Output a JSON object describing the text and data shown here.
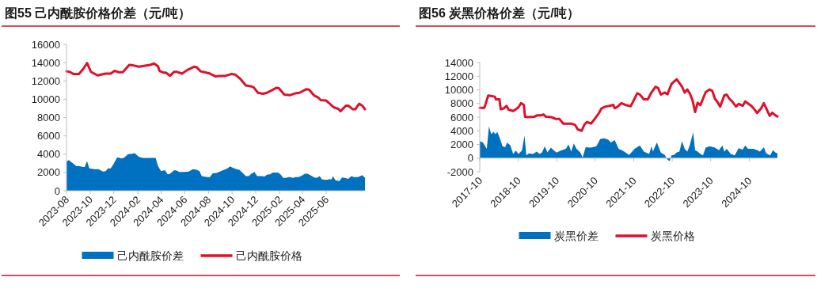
{
  "chart_data": [
    {
      "type": "line",
      "title": "图55  己内酰胺价格价差（元/吨）",
      "xlim": [
        "2023-08-01",
        "2025-09-09"
      ],
      "xticks": [
        "2023-08",
        "2023-10",
        "2023-12",
        "2024-02",
        "2024-04",
        "2024-06",
        "2024-08",
        "2024-10",
        "2024-12",
        "2025-02",
        "2025-04",
        "2025-06"
      ],
      "ylim": [
        0,
        16000
      ],
      "yticks": [
        0,
        2000,
        4000,
        6000,
        8000,
        10000,
        12000,
        14000,
        16000
      ],
      "legend": "bottom",
      "series": [
        {
          "name": "己内酰胺价差",
          "type": "area",
          "color": "#0070c0",
          "x": [
            "2023-08-01",
            "2023-08-07",
            "2023-08-16",
            "2023-08-26",
            "2023-09-02",
            "2023-09-13",
            "2023-09-17",
            "2023-09-23",
            "2023-09-29",
            "2023-10-13",
            "2023-10-23",
            "2023-11-03",
            "2023-11-10",
            "2023-11-16",
            "2023-11-23",
            "2023-11-30",
            "2023-12-10",
            "2023-12-20",
            "2023-12-27",
            "2024-01-07",
            "2024-01-17",
            "2024-01-24",
            "2024-02-04",
            "2024-02-14",
            "2024-02-27",
            "2024-03-11",
            "2024-03-18",
            "2024-03-24",
            "2024-04-01",
            "2024-04-11",
            "2024-04-18",
            "2024-04-24",
            "2024-05-05",
            "2024-05-11",
            "2024-05-18",
            "2024-06-01",
            "2024-06-11",
            "2024-06-22",
            "2024-07-02",
            "2024-07-09",
            "2024-07-15",
            "2024-07-29",
            "2024-08-05",
            "2024-08-12",
            "2024-08-22",
            "2024-09-06",
            "2024-09-19",
            "2024-09-26",
            "2024-10-03",
            "2024-10-13",
            "2024-10-20",
            "2024-11-06",
            "2024-11-13",
            "2024-11-20",
            "2024-11-28",
            "2024-12-05",
            "2024-12-17",
            "2024-12-24",
            "2024-12-30",
            "2025-01-07",
            "2025-01-14",
            "2025-01-28",
            "2025-02-04",
            "2025-02-10",
            "2025-02-17",
            "2025-02-24",
            "2025-02-28",
            "2025-03-07",
            "2025-03-14",
            "2025-03-21",
            "2025-03-28",
            "2025-04-07",
            "2025-04-14",
            "2025-04-21",
            "2025-05-01",
            "2025-05-08",
            "2025-05-15",
            "2025-05-21",
            "2025-06-01",
            "2025-06-08",
            "2025-06-15",
            "2025-06-18",
            "2025-06-25",
            "2025-07-05",
            "2025-07-12",
            "2025-07-19",
            "2025-07-28",
            "2025-08-05",
            "2025-08-12",
            "2025-08-22",
            "2025-09-02",
            "2025-09-07",
            "2025-09-09"
          ],
          "values": [
            3200,
            3350,
            3050,
            2700,
            2700,
            2600,
            2600,
            3250,
            2450,
            2350,
            2350,
            2100,
            2150,
            2450,
            2450,
            2900,
            3650,
            3550,
            3600,
            4000,
            4050,
            4100,
            3700,
            3600,
            3600,
            3600,
            3600,
            2700,
            2150,
            2250,
            1800,
            1850,
            2250,
            2200,
            2050,
            2050,
            2100,
            2350,
            2300,
            2150,
            1600,
            1500,
            1500,
            1900,
            1950,
            2200,
            2450,
            2650,
            2500,
            2350,
            2300,
            1600,
            1600,
            1850,
            2050,
            1600,
            1600,
            1550,
            1750,
            1800,
            2000,
            2000,
            1750,
            1400,
            1400,
            1500,
            1500,
            1400,
            1500,
            1500,
            1600,
            1850,
            1850,
            1700,
            1450,
            1400,
            1600,
            1250,
            1200,
            1250,
            1250,
            1600,
            1150,
            1050,
            1450,
            1400,
            1300,
            1600,
            1500,
            1500,
            1700,
            1500,
            1450
          ]
        },
        {
          "name": "己内酰胺价格",
          "color": "#e0102a",
          "x": [
            "2023-08-01",
            "2023-08-09",
            "2023-08-19",
            "2023-09-02",
            "2023-09-13",
            "2023-09-23",
            "2023-10-03",
            "2023-10-20",
            "2023-11-10",
            "2023-11-23",
            "2023-12-03",
            "2023-12-14",
            "2023-12-24",
            "2024-01-10",
            "2024-01-20",
            "2024-02-04",
            "2024-02-17",
            "2024-03-04",
            "2024-03-14",
            "2024-03-24",
            "2024-03-28",
            "2024-04-08",
            "2024-04-14",
            "2024-04-24",
            "2024-05-05",
            "2024-05-11",
            "2024-05-25",
            "2024-06-08",
            "2024-06-25",
            "2024-07-02",
            "2024-07-12",
            "2024-08-02",
            "2024-08-19",
            "2024-08-29",
            "2024-09-13",
            "2024-09-29",
            "2024-10-09",
            "2024-10-23",
            "2024-11-06",
            "2024-11-20",
            "2024-11-26",
            "2024-12-07",
            "2024-12-20",
            "2024-12-30",
            "2025-01-24",
            "2025-01-30",
            "2025-02-13",
            "2025-02-28",
            "2025-03-14",
            "2025-03-24",
            "2025-04-11",
            "2025-04-18",
            "2025-05-01",
            "2025-05-11",
            "2025-05-18",
            "2025-06-01",
            "2025-06-08",
            "2025-06-21",
            "2025-07-02",
            "2025-07-08",
            "2025-07-22",
            "2025-07-28",
            "2025-08-09",
            "2025-08-15",
            "2025-08-25",
            "2025-09-02",
            "2025-09-09"
          ],
          "values": [
            13050,
            13000,
            12750,
            12750,
            13300,
            13950,
            13000,
            12600,
            12800,
            12800,
            13100,
            12950,
            12950,
            13750,
            13700,
            13550,
            13650,
            13750,
            13900,
            13600,
            13100,
            12900,
            12900,
            12550,
            13000,
            13000,
            12800,
            13200,
            13550,
            13500,
            13050,
            12850,
            12500,
            12550,
            12550,
            12750,
            12700,
            12200,
            11500,
            11400,
            11300,
            10700,
            10600,
            10700,
            11250,
            11200,
            10500,
            10450,
            10650,
            10700,
            11100,
            11050,
            10400,
            10200,
            9900,
            9850,
            9600,
            9100,
            8950,
            8700,
            9300,
            9300,
            8900,
            8900,
            9500,
            9300,
            8900
          ]
        }
      ]
    },
    {
      "type": "line",
      "title": "图56  炭黑价格价差（元/吨）",
      "xlim": [
        "2017-10-01",
        "2025-06-25"
      ],
      "xticks": [
        "2017-10",
        "2018-10",
        "2019-10",
        "2020-10",
        "2021-10",
        "2022-10",
        "2023-10",
        "2024-10"
      ],
      "ylim": [
        -2000,
        14000
      ],
      "yticks": [
        -2000,
        0,
        2000,
        4000,
        6000,
        8000,
        10000,
        12000,
        14000
      ],
      "legend": "bottom",
      "series": [
        {
          "name": "炭黑价差",
          "type": "area",
          "color": "#0070c0",
          "x": [
            "2017-10-01",
            "2017-10-31",
            "2017-12-07",
            "2017-12-27",
            "2018-01-19",
            "2018-02-08",
            "2018-02-28",
            "2018-03-16",
            "2018-04-10",
            "2018-05-05",
            "2018-05-30",
            "2018-06-17",
            "2018-07-19",
            "2018-08-14",
            "2018-09-09",
            "2018-10-03",
            "2018-11-05",
            "2018-11-30",
            "2018-12-17",
            "2019-01-12",
            "2019-02-18",
            "2019-03-26",
            "2019-04-21",
            "2019-05-15",
            "2019-06-10",
            "2019-07-05",
            "2019-08-07",
            "2019-09-06",
            "2019-10-01",
            "2019-11-08",
            "2019-12-27",
            "2020-01-22",
            "2020-02-16",
            "2020-03-11",
            "2020-04-06",
            "2020-05-13",
            "2020-06-03",
            "2020-07-02",
            "2020-08-22",
            "2020-10-11",
            "2020-11-18",
            "2020-12-25",
            "2021-02-01",
            "2021-02-26",
            "2021-04-03",
            "2021-05-11",
            "2021-06-17",
            "2021-08-19",
            "2021-10-09",
            "2021-11-28",
            "2022-01-05",
            "2022-02-24",
            "2022-03-19",
            "2022-04-01",
            "2022-05-08",
            "2022-06-15",
            "2022-07-22",
            "2022-08-17",
            "2022-09-06",
            "2022-09-24",
            "2022-10-18",
            "2022-11-13",
            "2022-12-08",
            "2023-01-02",
            "2023-01-27",
            "2023-02-21",
            "2023-03-16",
            "2023-04-18",
            "2023-05-06",
            "2023-05-30",
            "2023-06-25",
            "2023-07-20",
            "2023-08-14",
            "2023-09-21",
            "2023-11-10",
            "2023-12-18",
            "2024-01-20",
            "2024-02-07",
            "2024-03-01",
            "2024-04-08",
            "2024-05-16",
            "2024-06-22",
            "2024-07-30",
            "2024-08-24",
            "2024-09-18",
            "2024-11-08",
            "2024-12-15",
            "2025-01-10",
            "2025-02-16",
            "2025-03-11",
            "2025-04-18",
            "2025-05-13",
            "2025-06-07",
            "2025-06-25"
          ],
          "values": [
            2500,
            2300,
            1350,
            4650,
            3500,
            3850,
            3500,
            3850,
            2900,
            1750,
            1600,
            2300,
            1850,
            600,
            1100,
            600,
            1100,
            3300,
            400,
            700,
            600,
            950,
            600,
            850,
            1750,
            850,
            1550,
            1100,
            800,
            1100,
            1350,
            2000,
            950,
            2150,
            1350,
            800,
            100,
            1600,
            1550,
            1750,
            2800,
            2900,
            2700,
            2300,
            2650,
            1350,
            1100,
            450,
            1350,
            1850,
            950,
            600,
            1750,
            950,
            2300,
            800,
            450,
            -200,
            -450,
            400,
            450,
            850,
            950,
            2500,
            1350,
            950,
            1850,
            3800,
            1150,
            950,
            600,
            400,
            1550,
            1750,
            1550,
            1150,
            1850,
            950,
            1350,
            600,
            400,
            1450,
            1250,
            1850,
            1350,
            1350,
            1150,
            950,
            1600,
            700,
            400,
            1150,
            800,
            700
          ]
        },
        {
          "name": "炭黑价格",
          "color": "#e0102a",
          "x": [
            "2017-10-01",
            "2017-11-13",
            "2017-11-25",
            "2017-12-20",
            "2018-01-14",
            "2018-02-21",
            "2018-03-04",
            "2018-04-06",
            "2018-04-18",
            "2018-05-18",
            "2018-06-12",
            "2018-07-02",
            "2018-08-14",
            "2018-09-09",
            "2018-10-03",
            "2018-10-28",
            "2018-11-23",
            "2018-12-05",
            "2018-12-30",
            "2019-03-01",
            "2019-03-26",
            "2019-05-03",
            "2019-05-28",
            "2019-06-22",
            "2019-08-12",
            "2019-09-19",
            "2019-10-26",
            "2019-12-03",
            "2020-02-16",
            "2020-03-24",
            "2020-04-18",
            "2020-05-25",
            "2020-06-20",
            "2020-07-15",
            "2020-08-22",
            "2020-09-29",
            "2020-11-05",
            "2020-11-30",
            "2021-01-07",
            "2021-02-14",
            "2021-03-21",
            "2021-04-03",
            "2021-04-28",
            "2021-06-05",
            "2021-07-12",
            "2021-09-01",
            "2021-09-26",
            "2021-11-03",
            "2021-11-28",
            "2022-01-05",
            "2022-02-11",
            "2022-03-19",
            "2022-04-26",
            "2022-05-21",
            "2022-06-15",
            "2022-07-22",
            "2022-08-17",
            "2022-09-24",
            "2022-10-18",
            "2022-11-13",
            "2022-12-08",
            "2023-01-02",
            "2023-01-27",
            "2023-02-21",
            "2023-03-16",
            "2023-04-11",
            "2023-05-06",
            "2023-05-30",
            "2023-06-25",
            "2023-07-20",
            "2023-08-14",
            "2023-09-21",
            "2023-10-16",
            "2023-11-10",
            "2023-12-05",
            "2023-12-30",
            "2024-02-07",
            "2024-03-01",
            "2024-03-26",
            "2024-04-21",
            "2024-05-28",
            "2024-06-22",
            "2024-07-30",
            "2024-08-24",
            "2024-10-13",
            "2024-11-08",
            "2024-12-15",
            "2025-01-22",
            "2025-02-16",
            "2025-03-11",
            "2025-04-13",
            "2025-05-08",
            "2025-06-07",
            "2025-06-25"
          ],
          "values": [
            7350,
            7350,
            7900,
            9150,
            9100,
            9000,
            8600,
            8600,
            7150,
            7300,
            7650,
            7100,
            6900,
            7150,
            7450,
            8050,
            7800,
            6050,
            6000,
            6050,
            6250,
            6250,
            6400,
            6050,
            6000,
            5750,
            5750,
            5050,
            5050,
            4850,
            4200,
            4000,
            4900,
            5300,
            5050,
            5800,
            6600,
            7300,
            7550,
            7650,
            7800,
            7300,
            7500,
            8050,
            7800,
            7600,
            8300,
            9500,
            9300,
            8600,
            8600,
            9650,
            10450,
            10250,
            9300,
            9600,
            9350,
            10850,
            11200,
            11550,
            11000,
            10450,
            9600,
            10050,
            9500,
            8500,
            6750,
            8100,
            7750,
            8700,
            9650,
            10050,
            9850,
            8700,
            8200,
            7550,
            9200,
            9300,
            8700,
            8300,
            7550,
            7950,
            7650,
            8300,
            7750,
            7350,
            6600,
            7300,
            8050,
            7300,
            6200,
            6650,
            6250,
            6100
          ]
        }
      ]
    }
  ]
}
